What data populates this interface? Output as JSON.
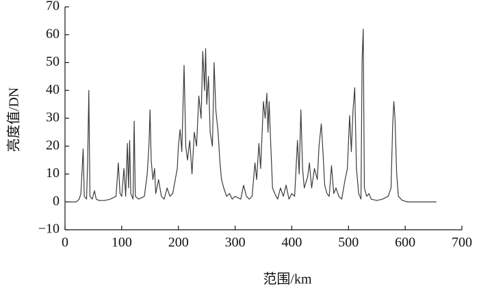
{
  "chart_data": {
    "type": "line",
    "xlabel": "范围/km",
    "ylabel": "亮度值/DN",
    "xlim": [
      0,
      700
    ],
    "ylim": [
      -10,
      70
    ],
    "xticks": [
      0,
      100,
      200,
      300,
      400,
      500,
      600,
      700
    ],
    "yticks": [
      {
        "value": -10,
        "label": "−10"
      },
      0,
      10,
      20,
      30,
      40,
      50,
      60,
      70
    ],
    "color": "#3a3a3a",
    "x": [
      0,
      10,
      20,
      25,
      28,
      32,
      34,
      38,
      40,
      42,
      44,
      48,
      52,
      55,
      60,
      70,
      80,
      90,
      94,
      97,
      100,
      104,
      107,
      110,
      112,
      114,
      116,
      120,
      122,
      124,
      130,
      140,
      145,
      148,
      150,
      152,
      155,
      158,
      160,
      165,
      170,
      175,
      180,
      185,
      190,
      198,
      200,
      203,
      206,
      210,
      213,
      216,
      220,
      224,
      228,
      232,
      236,
      240,
      243,
      246,
      248,
      250,
      253,
      256,
      260,
      263,
      266,
      270,
      273,
      276,
      280,
      285,
      290,
      295,
      300,
      310,
      315,
      320,
      325,
      330,
      335,
      338,
      342,
      345,
      350,
      353,
      356,
      358,
      360,
      363,
      366,
      370,
      375,
      380,
      385,
      390,
      395,
      400,
      405,
      410,
      413,
      416,
      419,
      422,
      428,
      431,
      435,
      440,
      445,
      448,
      452,
      455,
      458,
      462,
      466,
      470,
      474,
      478,
      483,
      488,
      494,
      498,
      502,
      505,
      508,
      511,
      514,
      518,
      522,
      524,
      526,
      528,
      532,
      536,
      540,
      550,
      560,
      570,
      575,
      578,
      580,
      582,
      585,
      588,
      595,
      605,
      620,
      640,
      655
    ],
    "values": [
      0,
      0,
      0,
      1,
      3,
      19,
      2,
      1,
      15,
      40,
      2,
      1,
      4,
      1,
      0.5,
      0.5,
      1,
      2,
      14,
      3,
      2,
      12,
      2,
      21,
      5,
      22,
      3,
      1,
      29,
      2,
      1,
      2,
      10,
      20,
      33,
      15,
      8,
      12,
      3,
      8,
      2,
      1,
      5,
      2,
      3,
      12,
      20,
      26,
      18,
      49,
      20,
      15,
      22,
      10,
      25,
      20,
      38,
      30,
      54,
      40,
      55,
      35,
      45,
      25,
      20,
      50,
      33,
      25,
      15,
      8,
      5,
      2,
      3,
      1,
      2,
      1,
      6,
      2,
      1,
      2,
      14,
      8,
      21,
      12,
      36,
      30,
      39,
      25,
      36,
      20,
      5,
      3,
      1,
      5,
      2,
      6,
      1,
      3,
      2,
      22,
      10,
      33,
      12,
      5,
      9,
      14,
      5,
      12,
      8,
      20,
      28,
      18,
      6,
      3,
      2,
      13,
      3,
      5,
      2,
      1,
      8,
      12,
      31,
      18,
      33,
      41,
      12,
      3,
      1,
      51,
      62,
      5,
      2,
      3,
      1,
      0.5,
      1,
      2,
      5,
      28,
      36,
      30,
      10,
      2,
      0.5,
      0,
      0,
      0,
      0
    ]
  }
}
